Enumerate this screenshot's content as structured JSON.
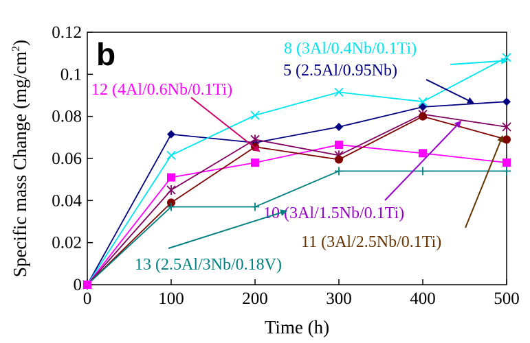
{
  "chart_data": {
    "type": "line",
    "panel_label": "b",
    "xlabel": "Time (h)",
    "ylabel": "Specific mass Change (mg/cm²)",
    "ylabel_main": "Specific mass Change (mg/cm",
    "ylabel_sup": "2",
    "ylabel_end": ")",
    "xlim": [
      0,
      500
    ],
    "ylim": [
      0,
      0.12
    ],
    "x_ticks": [
      "0",
      "100",
      "200",
      "300",
      "400",
      "500"
    ],
    "y_ticks": [
      "0",
      "0.02",
      "0.04",
      "0.06",
      "0.08",
      "0.1",
      "0.12"
    ],
    "grid": false,
    "series": [
      {
        "name": "5 (2.5Al/0.95Nb)",
        "color": "#000080",
        "marker": "diamond",
        "x": [
          0,
          100,
          200,
          300,
          400,
          500
        ],
        "y": [
          0,
          0.0715,
          0.0675,
          0.075,
          0.0845,
          0.087
        ]
      },
      {
        "name": "8 (3Al/0.4Nb/0.1Ti)",
        "color": "#00e5ee",
        "marker": "x",
        "x": [
          0,
          100,
          200,
          300,
          400,
          500
        ],
        "y": [
          0,
          0.0615,
          0.0805,
          0.0915,
          0.087,
          0.108
        ]
      },
      {
        "name": "12 (4Al/0.6Nb/0.1Ti)",
        "color": "#ff00ff",
        "marker": "square",
        "x": [
          0,
          100,
          200,
          300,
          400,
          500
        ],
        "y": [
          0,
          0.051,
          0.058,
          0.0665,
          0.0625,
          0.058
        ]
      },
      {
        "name": "10 (3Al/1.5Nb/0.1Ti)",
        "color": "#800060",
        "marker": "star",
        "x": [
          0,
          100,
          200,
          300,
          400,
          500
        ],
        "y": [
          0,
          0.045,
          0.069,
          0.0615,
          0.081,
          0.075
        ]
      },
      {
        "name": "11 (3Al/2.5Nb/0.1Ti)",
        "color": "#800000",
        "marker": "circle",
        "x": [
          0,
          100,
          200,
          300,
          400,
          500
        ],
        "y": [
          0,
          0.039,
          0.0655,
          0.0595,
          0.08,
          0.069
        ]
      },
      {
        "name": "13 (2.5Al/3Nb/0.18V)",
        "color": "#008080",
        "marker": "plus",
        "x": [
          0,
          100,
          200,
          300,
          400,
          500
        ],
        "y": [
          0,
          0.037,
          0.037,
          0.054,
          0.054,
          0.054
        ]
      }
    ],
    "annotations": [
      {
        "text": "8 (3Al/0.4Nb/0.1Ti)",
        "color": "#00e5ee",
        "arrow_color": "#00e5ee",
        "points_to": [
          500,
          0.1065
        ]
      },
      {
        "text": "5 (2.5Al/0.95Nb)",
        "color": "#000080",
        "arrow_color": "#000080",
        "points_to": [
          460,
          0.0865
        ]
      },
      {
        "text": "12 (4Al/0.6Nb/0.1Ti)",
        "color": "#ff00ff",
        "arrow_color": "#cc0066",
        "points_to": [
          205,
          0.0635
        ]
      },
      {
        "text": "10 (3Al/1.5Nb/0.1Ti)",
        "color": "#9900cc",
        "arrow_color": "#9900cc",
        "points_to": [
          445,
          0.0775
        ]
      },
      {
        "text": "11 (3Al/2.5Nb/0.1Ti)",
        "color": "#663300",
        "arrow_color": "#663300",
        "points_to": [
          495,
          0.0705
        ]
      },
      {
        "text": "13 (2.5Al/3Nb/0.18V)",
        "color": "#008080",
        "arrow_color": "#008080",
        "points_to": [
          237,
          0.035
        ]
      }
    ]
  }
}
